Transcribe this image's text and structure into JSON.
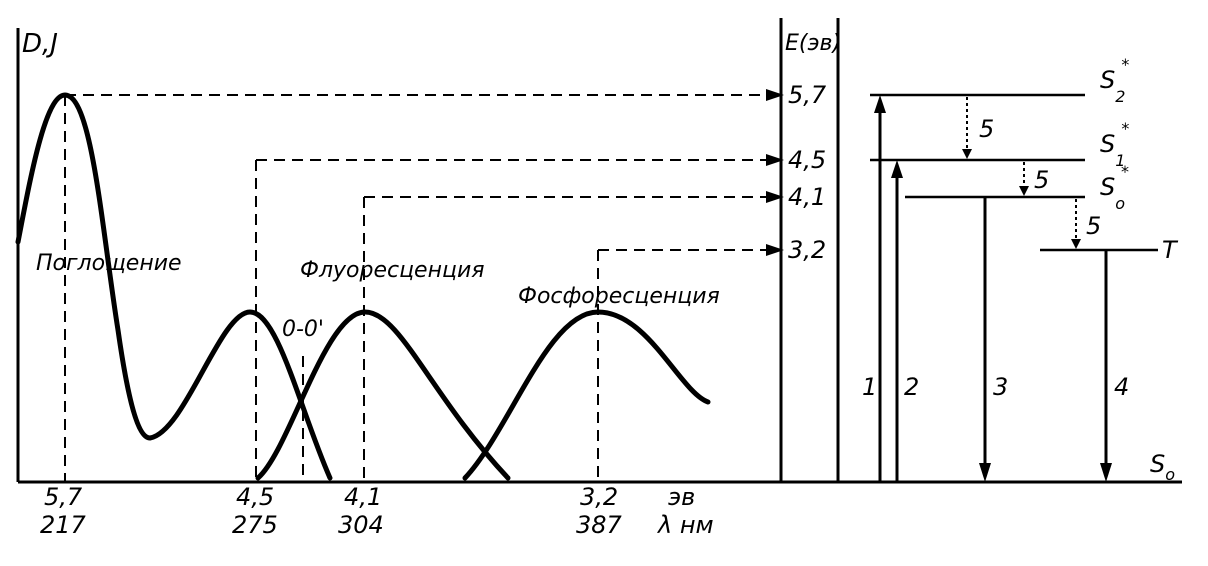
{
  "left_axis_label": "D,J",
  "energy_axis_label": "E(эв)",
  "energy_unit": "эв",
  "wavelength_unit": "λ нм",
  "curve_labels": {
    "absorption": "Поглощение",
    "fluorescence": "Флуоресценция",
    "phosphorescence": "Фосфоресценция",
    "zero_zero": "0-0'"
  },
  "ticks": [
    {
      "ev": "5,7",
      "nm": "217"
    },
    {
      "ev": "4,5",
      "nm": "275"
    },
    {
      "ev": "4,1",
      "nm": "304"
    },
    {
      "ev": "3,2",
      "nm": "387"
    }
  ],
  "energy_levels": [
    {
      "value": "5,7",
      "state": "S",
      "sup": "*",
      "sub": "2"
    },
    {
      "value": "4,5",
      "state": "S",
      "sup": "*",
      "sub": "1"
    },
    {
      "value": "4,1",
      "state": "S",
      "sup": "*",
      "sub": "o"
    },
    {
      "value": "3,2",
      "state": "T",
      "sup": "",
      "sub": ""
    }
  ],
  "ground_state": {
    "state": "S",
    "sub": "o"
  },
  "transitions": [
    "1",
    "2",
    "3",
    "4"
  ],
  "relaxation_label": "5"
}
